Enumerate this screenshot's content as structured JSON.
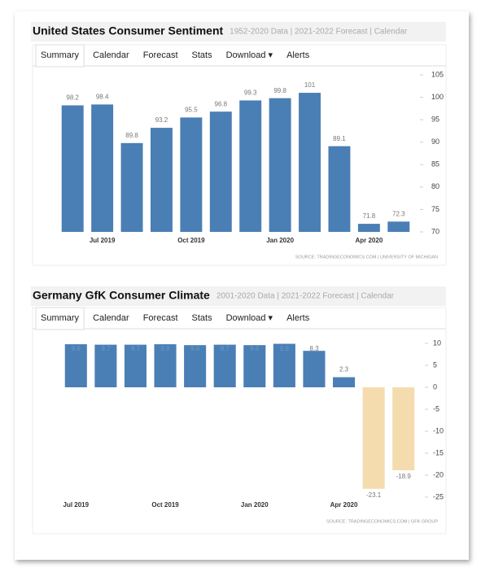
{
  "chart_data": [
    {
      "type": "bar",
      "title": "United States Consumer Sentiment",
      "subtitle": "1952-2020 Data | 2021-2022 Forecast | Calendar",
      "tabs": [
        "Summary",
        "Calendar",
        "Forecast",
        "Stats",
        "Download ▾",
        "Alerts"
      ],
      "categories": [
        null,
        "Jul 2019",
        null,
        null,
        "Oct 2019",
        null,
        null,
        "Jan 2020",
        null,
        null,
        "Apr 2020",
        null
      ],
      "values": [
        98.2,
        98.4,
        89.8,
        93.2,
        95.5,
        96.8,
        99.3,
        99.8,
        101,
        89.1,
        71.8,
        72.3
      ],
      "color": "#4a7fb5",
      "ylim": [
        70,
        105
      ],
      "yticks": [
        70,
        75,
        80,
        85,
        90,
        95,
        100,
        105
      ],
      "source": "SOURCE: TRADINGECONOMICS.COM | UNIVERSITY OF MICHIGAN"
    },
    {
      "type": "bar",
      "title": "Germany GfK Consumer Climate",
      "subtitle": "2001-2020 Data | 2021-2022 Forecast | Calendar",
      "tabs": [
        "Summary",
        "Calendar",
        "Forecast",
        "Stats",
        "Download ▾",
        "Alerts"
      ],
      "categories": [
        "Jul 2019",
        null,
        null,
        "Oct 2019",
        null,
        null,
        "Jan 2020",
        null,
        null,
        "Apr 2020",
        null,
        null
      ],
      "values": [
        9.8,
        9.7,
        9.7,
        9.8,
        9.6,
        9.7,
        9.6,
        9.9,
        8.3,
        2.3,
        -23.1,
        -18.9
      ],
      "color": "#4a7fb5",
      "negative_color": "#f5dcae",
      "ylim": [
        -25,
        10
      ],
      "yticks": [
        -25,
        -20,
        -15,
        -10,
        -5,
        0,
        5,
        10
      ],
      "source": "SOURCE: TRADINGECONOMICS.COM | GFK GROUP"
    }
  ]
}
